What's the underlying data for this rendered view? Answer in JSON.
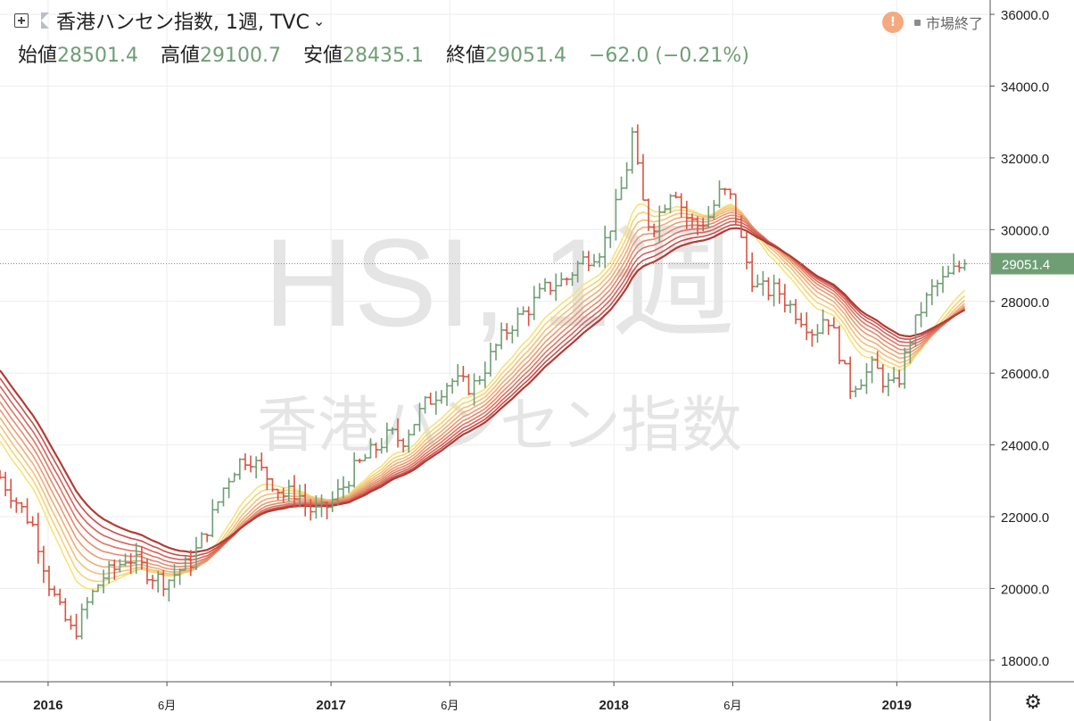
{
  "header": {
    "symbol_title": "香港ハンセン指数, 1週, TVC",
    "dropdown_icon": "chevron-down-icon",
    "add_icon": "plus-square-icon",
    "flag_icon": "flag-icon"
  },
  "ohlc": {
    "open_label": "始値",
    "open": "28501.4",
    "high_label": "高値",
    "high": "29100.7",
    "low_label": "安値",
    "low": "28435.1",
    "close_label": "終値",
    "close": "29051.4",
    "change": "−62.0 (−0.21%)"
  },
  "status": {
    "warning_icon": "warning-icon",
    "warning_glyph": "!",
    "market_status": "市場終了"
  },
  "settings_icon": "gear-icon",
  "watermark": {
    "line1": "HSI, 1週",
    "line2": "香港ハンセン指数"
  },
  "colors": {
    "up": "#6f9e74",
    "down": "#d75442",
    "axis_text": "#222222",
    "grid": "#eeeeee",
    "price_label_bg": "#6f9e74"
  },
  "chart_data": {
    "type": "ohlc",
    "last_price_label": "29051.4",
    "last_price": 29051.4,
    "y_axis": {
      "min": 17400,
      "max": 36400,
      "ticks": [
        "18000.0",
        "20000.0",
        "22000.0",
        "24000.0",
        "26000.0",
        "28000.0",
        "30000.0",
        "32000.0",
        "34000.0",
        "36000.0"
      ]
    },
    "x_axis": {
      "start": 2015.83,
      "end": 2019.33,
      "tick_labels": [
        {
          "t": 2016.0,
          "label": "2016"
        },
        {
          "t": 2016.42,
          "label": "6月"
        },
        {
          "t": 2017.0,
          "label": "2017"
        },
        {
          "t": 2017.42,
          "label": "6月"
        },
        {
          "t": 2018.0,
          "label": "2018"
        },
        {
          "t": 2018.42,
          "label": "6月"
        },
        {
          "t": 2019.0,
          "label": "2019"
        }
      ]
    },
    "price_path": [
      [
        2015.83,
        23100
      ],
      [
        2015.95,
        21700
      ],
      [
        2016.0,
        20200
      ],
      [
        2016.04,
        19400
      ],
      [
        2016.09,
        18700
      ],
      [
        2016.14,
        19600
      ],
      [
        2016.19,
        20300
      ],
      [
        2016.23,
        20500
      ],
      [
        2016.28,
        20900
      ],
      [
        2016.33,
        20600
      ],
      [
        2016.38,
        20300
      ],
      [
        2016.42,
        20200
      ],
      [
        2016.46,
        20500
      ],
      [
        2016.5,
        20700
      ],
      [
        2016.54,
        21300
      ],
      [
        2016.58,
        22000
      ],
      [
        2016.63,
        23000
      ],
      [
        2016.67,
        23500
      ],
      [
        2016.71,
        23700
      ],
      [
        2016.75,
        23300
      ],
      [
        2016.79,
        23000
      ],
      [
        2016.83,
        22600
      ],
      [
        2016.88,
        22700
      ],
      [
        2016.92,
        22200
      ],
      [
        2016.96,
        22100
      ],
      [
        2017.0,
        22400
      ],
      [
        2017.04,
        22800
      ],
      [
        2017.08,
        23300
      ],
      [
        2017.13,
        23700
      ],
      [
        2017.17,
        24000
      ],
      [
        2017.21,
        24300
      ],
      [
        2017.25,
        24100
      ],
      [
        2017.29,
        24600
      ],
      [
        2017.33,
        25100
      ],
      [
        2017.38,
        25500
      ],
      [
        2017.42,
        25800
      ],
      [
        2017.46,
        25700
      ],
      [
        2017.5,
        25600
      ],
      [
        2017.54,
        26100
      ],
      [
        2017.58,
        26700
      ],
      [
        2017.63,
        27300
      ],
      [
        2017.67,
        27600
      ],
      [
        2017.71,
        27900
      ],
      [
        2017.75,
        28300
      ],
      [
        2017.79,
        28500
      ],
      [
        2017.83,
        28600
      ],
      [
        2017.88,
        29100
      ],
      [
        2017.92,
        29300
      ],
      [
        2017.96,
        29500
      ],
      [
        2018.0,
        30400
      ],
      [
        2018.04,
        31500
      ],
      [
        2018.07,
        32900
      ],
      [
        2018.09,
        31100
      ],
      [
        2018.13,
        30000
      ],
      [
        2018.17,
        30600
      ],
      [
        2018.21,
        31300
      ],
      [
        2018.25,
        30400
      ],
      [
        2018.29,
        30100
      ],
      [
        2018.33,
        30300
      ],
      [
        2018.38,
        31100
      ],
      [
        2018.42,
        30800
      ],
      [
        2018.46,
        29300
      ],
      [
        2018.5,
        28400
      ],
      [
        2018.54,
        28300
      ],
      [
        2018.58,
        28300
      ],
      [
        2018.63,
        27800
      ],
      [
        2018.67,
        27500
      ],
      [
        2018.71,
        27100
      ],
      [
        2018.75,
        27700
      ],
      [
        2018.79,
        26800
      ],
      [
        2018.83,
        25600
      ],
      [
        2018.88,
        25900
      ],
      [
        2018.92,
        26200
      ],
      [
        2018.96,
        25700
      ],
      [
        2019.0,
        25600
      ],
      [
        2019.04,
        26800
      ],
      [
        2019.08,
        27700
      ],
      [
        2019.13,
        28400
      ],
      [
        2019.17,
        28600
      ],
      [
        2019.21,
        28900
      ],
      [
        2019.24,
        29051.4
      ]
    ],
    "ribbon_colors": [
      "#f6e27a",
      "#f5d27a",
      "#f2c07a",
      "#eeae76",
      "#ea9b70",
      "#e5896a",
      "#de7562",
      "#d5625a",
      "#c84e4a",
      "#b23c34"
    ],
    "ribbon_periods": [
      5,
      6,
      7,
      8,
      9,
      10,
      11,
      12,
      13,
      14
    ]
  }
}
